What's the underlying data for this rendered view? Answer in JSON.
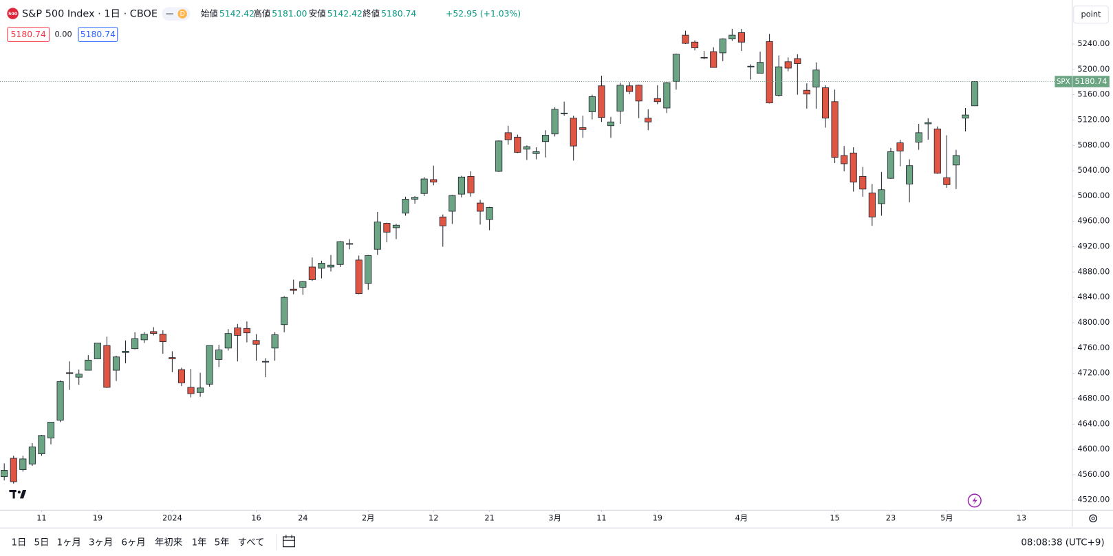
{
  "header": {
    "logo": "500",
    "title": "S&P 500 Index · 1日 · CBOE",
    "interval_badge": "D",
    "ohlc": [
      {
        "label": "始値",
        "value": "5142.42"
      },
      {
        "label": "高値",
        "value": "5181.00"
      },
      {
        "label": "安値",
        "value": "5142.42"
      },
      {
        "label": "終値",
        "value": "5180.74"
      }
    ],
    "change": "+52.95 (+1.03%)"
  },
  "price_boxes": {
    "sell": "5180.74",
    "spread": "0.00",
    "buy": "5180.74"
  },
  "point_button": "point",
  "chart_data": {
    "type": "candlestick",
    "up_color": "#6ba583",
    "down_color": "#df5744",
    "wick_color": "#1e222d",
    "grid": false,
    "open": [
      4557,
      4586,
      4568,
      4577,
      4593,
      4618,
      4646,
      4721,
      4714,
      4725,
      4743,
      4764,
      4725,
      4753,
      4759,
      4773,
      4786,
      4782,
      4745,
      4726,
      4698,
      4690,
      4703,
      4742,
      4760,
      4792,
      4791,
      4772,
      4739,
      4760,
      4797,
      4853,
      4856,
      4888,
      4886,
      4888,
      4892,
      4925,
      4899,
      4862,
      4916,
      4957,
      4950,
      4973,
      4995,
      5004,
      5026,
      4967,
      4976,
      5003,
      5031,
      4989,
      4963,
      5039,
      5100,
      5093,
      5074,
      5067,
      5086,
      5098,
      5131,
      5123,
      5108,
      5133,
      5174,
      5111,
      5134,
      5174,
      5175,
      5123,
      5154,
      5139,
      5181,
      5254,
      5243,
      5219,
      5228,
      5226,
      5248,
      5258,
      5204,
      5194,
      5244,
      5159,
      5212,
      5217,
      5167,
      5172,
      5171,
      5149,
      5064,
      5068,
      5031,
      5005,
      4988,
      5028,
      5084,
      5019,
      5085,
      5114,
      5106,
      5029,
      5049,
      5123,
      5142.42
    ],
    "high": [
      4578,
      4590,
      4590,
      4610,
      4623,
      4643,
      4709,
      4739,
      4726,
      4749,
      4768,
      4778,
      4748,
      4772,
      4785,
      4785,
      4793,
      4788,
      4755,
      4729,
      4727,
      4721,
      4764,
      4765,
      4790,
      4798,
      4802,
      4782,
      4744,
      4785,
      4842,
      4868,
      4866,
      4903,
      4898,
      4907,
      4929,
      4932,
      4906,
      4907,
      4975,
      4958,
      4956,
      4999,
      5000,
      5030,
      5048,
      4971,
      5002,
      5032,
      5039,
      4994,
      4983,
      5088,
      5111,
      5097,
      5080,
      5077,
      5104,
      5140,
      5149,
      5127,
      5127,
      5160,
      5190,
      5125,
      5179,
      5180,
      5176,
      5137,
      5175,
      5180,
      5225,
      5261,
      5246,
      5229,
      5235,
      5249,
      5264,
      5264,
      5208,
      5228,
      5256,
      5222,
      5219,
      5224,
      5178,
      5211,
      5175,
      5168,
      5079,
      5077,
      5046,
      5019,
      5038,
      5076,
      5089,
      5058,
      5114,
      5123,
      5110,
      5096,
      5073,
      5139,
      5181
    ],
    "low": [
      4551,
      4546,
      4565,
      4574,
      4590,
      4608,
      4643,
      4694,
      4702,
      4725,
      4743,
      4697,
      4708,
      4736,
      4758,
      4768,
      4780,
      4751,
      4722,
      4700,
      4682,
      4683,
      4699,
      4730,
      4756,
      4739,
      4769,
      4740,
      4714,
      4740,
      4785,
      4845,
      4844,
      4866,
      4870,
      4881,
      4888,
      4916,
      4845,
      4852,
      4907,
      4927,
      4932,
      4969,
      4988,
      5000,
      5017,
      4920,
      4956,
      4998,
      4999,
      4955,
      4946,
      5038,
      5081,
      5068,
      5057,
      5058,
      5061,
      5094,
      5127,
      5056,
      5092,
      5121,
      5117,
      5092,
      5114,
      5161,
      5123,
      5104,
      5145,
      5131,
      5168,
      5240,
      5230,
      5216,
      5203,
      5213,
      5245,
      5229,
      5184,
      5194,
      5146,
      5157,
      5197,
      5160,
      5138,
      5138,
      5108,
      5052,
      5039,
      5007,
      4999,
      4953,
      4969,
      5027,
      5047,
      4990,
      5073,
      5089,
      5035,
      5013,
      5011,
      5102,
      5142.42
    ],
    "close": [
      4567,
      4549,
      4585,
      4604,
      4622,
      4643,
      4707,
      4720,
      4719,
      4741,
      4768,
      4698,
      4746,
      4755,
      4775,
      4782,
      4783,
      4770,
      4743,
      4705,
      4688,
      4697,
      4764,
      4757,
      4783,
      4780,
      4784,
      4766,
      4739,
      4781,
      4840,
      4851,
      4865,
      4868,
      4894,
      4891,
      4928,
      4925,
      4846,
      4906,
      4959,
      4943,
      4954,
      4995,
      4998,
      5027,
      5022,
      4953,
      5001,
      5030,
      5005,
      4976,
      4982,
      5087,
      5089,
      5069,
      5078,
      5070,
      5096,
      5137,
      5131,
      5079,
      5105,
      5157,
      5124,
      5117,
      5175,
      5165,
      5150,
      5117,
      5149,
      5179,
      5224,
      5241,
      5234,
      5218,
      5203,
      5248,
      5254,
      5243,
      5205,
      5211,
      5147,
      5204,
      5202,
      5209,
      5161,
      5199,
      5123,
      5061,
      5051,
      5022,
      5011,
      4967,
      5010,
      5070,
      5071,
      5048,
      5100,
      5116,
      5036,
      5018,
      5064,
      5128,
      5180.74
    ],
    "xlim": [
      -0.456,
      114.4
    ],
    "xticks": [
      {
        "value": 4,
        "label": "11"
      },
      {
        "value": 10,
        "label": "19"
      },
      {
        "value": 18,
        "label": "2024"
      },
      {
        "value": 27,
        "label": "16"
      },
      {
        "value": 32,
        "label": "24"
      },
      {
        "value": 39,
        "label": "2月"
      },
      {
        "value": 46,
        "label": "12"
      },
      {
        "value": 52,
        "label": "21"
      },
      {
        "value": 59,
        "label": "3月"
      },
      {
        "value": 64,
        "label": "11"
      },
      {
        "value": 70,
        "label": "19"
      },
      {
        "value": 79,
        "label": "4月"
      },
      {
        "value": 89,
        "label": "15"
      },
      {
        "value": 95,
        "label": "23"
      },
      {
        "value": 101,
        "label": "5月"
      },
      {
        "value": 109,
        "label": "13"
      }
    ],
    "ylim": [
      4504.6,
      5303.9
    ],
    "yticks": [
      {
        "value": 4520,
        "label": "4520.00"
      },
      {
        "value": 4560,
        "label": "4560.00"
      },
      {
        "value": 4600,
        "label": "4600.00"
      },
      {
        "value": 4640,
        "label": "4640.00"
      },
      {
        "value": 4680,
        "label": "4680.00"
      },
      {
        "value": 4720,
        "label": "4720.00"
      },
      {
        "value": 4760,
        "label": "4760.00"
      },
      {
        "value": 4800,
        "label": "4800.00"
      },
      {
        "value": 4840,
        "label": "4840.00"
      },
      {
        "value": 4880,
        "label": "4880.00"
      },
      {
        "value": 4920,
        "label": "4920.00"
      },
      {
        "value": 4960,
        "label": "4960.00"
      },
      {
        "value": 5000,
        "label": "5000.00"
      },
      {
        "value": 5040,
        "label": "5040.00"
      },
      {
        "value": 5080,
        "label": "5080.00"
      },
      {
        "value": 5120,
        "label": "5120.00"
      },
      {
        "value": 5160,
        "label": "5160.00"
      },
      {
        "value": 5200,
        "label": "5200.00"
      },
      {
        "value": 5240,
        "label": "5240.00"
      }
    ],
    "price_line": {
      "symbol": "SPX",
      "label": "5180.74"
    }
  },
  "toolbar": {
    "ranges": [
      "1日",
      "5日",
      "1ヶ月",
      "3ヶ月",
      "6ヶ月",
      "年初来",
      "1年",
      "5年",
      "すべて"
    ],
    "clock": "08:08:38 (UTC+9)"
  }
}
